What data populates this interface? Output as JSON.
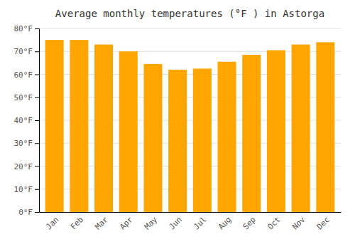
{
  "chart_data": {
    "type": "bar",
    "title": "Average monthly temperatures (°F ) in Astorga",
    "categories": [
      "Jan",
      "Feb",
      "Mar",
      "Apr",
      "May",
      "Jun",
      "Jul",
      "Aug",
      "Sep",
      "Oct",
      "Nov",
      "Dec"
    ],
    "values": [
      75,
      75,
      73,
      70,
      64.5,
      62,
      62.5,
      65.5,
      68.5,
      70.5,
      73,
      74
    ],
    "color": "#FFA500",
    "ylim": [
      0,
      80
    ],
    "yticks": [
      {
        "value": 0,
        "label": "0°F"
      },
      {
        "value": 10,
        "label": "10°F"
      },
      {
        "value": 20,
        "label": "20°F"
      },
      {
        "value": 30,
        "label": "30°F"
      },
      {
        "value": 40,
        "label": "40°F"
      },
      {
        "value": 50,
        "label": "50°F"
      },
      {
        "value": 60,
        "label": "60°F"
      },
      {
        "value": 70,
        "label": "70°F"
      },
      {
        "value": 80,
        "label": "80°F"
      }
    ],
    "grid": true
  }
}
